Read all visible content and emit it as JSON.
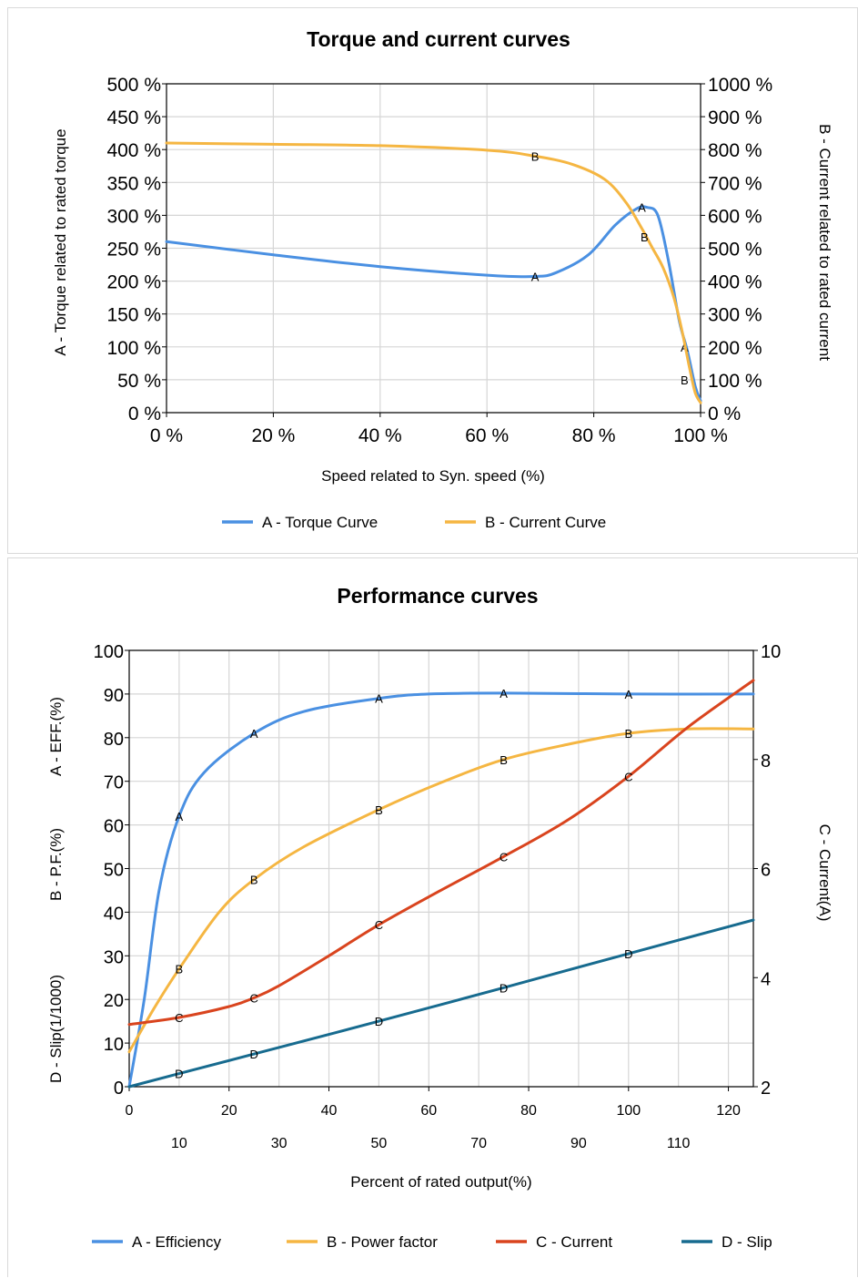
{
  "colors": {
    "torque": "#4a90e2",
    "current_orange": "#f5b642",
    "current_red": "#d9441e",
    "slip": "#176b8f",
    "grid": "#d6d6d6"
  },
  "chart_data": [
    {
      "type": "line",
      "title": "Torque and current curves",
      "xlabel": "Speed related to Syn. speed (%)",
      "ylabel_left": "A - Torque related to rated torque",
      "ylabel_right": "B - Current related to rated current",
      "xlim": [
        0,
        100
      ],
      "ylim_left": [
        0,
        500
      ],
      "ylim_right": [
        0,
        1000
      ],
      "x_ticks": [
        "0 %",
        "20 %",
        "40 %",
        "60 %",
        "80 %",
        "100 %"
      ],
      "y_left_ticks": [
        "0 %",
        "50 %",
        "100 %",
        "150 %",
        "200 %",
        "250 %",
        "300 %",
        "350 %",
        "400 %",
        "450 %",
        "500 %"
      ],
      "y_right_ticks": [
        "0 %",
        "100 %",
        "200 %",
        "300 %",
        "400 %",
        "500 %",
        "600 %",
        "700 %",
        "800 %",
        "900 %",
        "1000 %"
      ],
      "grid": true,
      "legend_position": "bottom",
      "series": [
        {
          "name": "A - Torque Curve",
          "marker": "A",
          "axis": "left",
          "color": "#4a90e2",
          "x": [
            0,
            20,
            40,
            60,
            69,
            73,
            79,
            84,
            88,
            90,
            92,
            94,
            96,
            97.5,
            99,
            100
          ],
          "y": [
            260,
            240,
            222,
            209,
            207,
            213,
            240,
            285,
            310,
            312,
            300,
            230,
            140,
            95,
            40,
            18
          ],
          "marker_x": [
            69,
            89,
            97
          ],
          "marker_y": [
            207,
            312,
            100
          ]
        },
        {
          "name": "B - Current Curve",
          "marker": "B",
          "axis": "right",
          "color": "#f5b642",
          "x": [
            0,
            20,
            40,
            60,
            69,
            76,
            82,
            86,
            89,
            91,
            93,
            95,
            96.5,
            98,
            99,
            100
          ],
          "y": [
            820,
            816,
            812,
            798,
            780,
            755,
            710,
            640,
            560,
            500,
            440,
            350,
            250,
            130,
            60,
            30
          ],
          "marker_x": [
            69,
            89.5,
            97
          ],
          "marker_y": [
            780,
            535,
            100
          ]
        }
      ]
    },
    {
      "type": "line",
      "title": "Performance curves",
      "xlabel": "Percent of rated output(%)",
      "ylabel_left": [
        "D - Slip(1/1000)",
        "B - P.F.(%)",
        "A - EFF.(%)"
      ],
      "ylabel_right": "C - Current(A)",
      "xlim": [
        0,
        125
      ],
      "ylim_left": [
        0,
        100
      ],
      "ylim_right": [
        2,
        10
      ],
      "x_ticks_top": [
        "0",
        "20",
        "40",
        "60",
        "80",
        "100",
        "120"
      ],
      "x_ticks_bottom": [
        "10",
        "30",
        "50",
        "70",
        "90",
        "110"
      ],
      "y_left_ticks": [
        "0",
        "10",
        "20",
        "30",
        "40",
        "50",
        "60",
        "70",
        "80",
        "90",
        "100"
      ],
      "y_right_ticks": [
        "2",
        "4",
        "6",
        "8",
        "10"
      ],
      "grid": true,
      "legend_position": "bottom",
      "series": [
        {
          "name": "A -  Efficiency",
          "marker": "A",
          "axis": "left",
          "color": "#4a90e2",
          "x": [
            0,
            3,
            6,
            10,
            15,
            25,
            35,
            50,
            60,
            75,
            100,
            125
          ],
          "y": [
            0,
            20,
            45,
            62,
            72,
            81,
            86,
            89,
            90,
            90.2,
            90,
            90
          ],
          "marker_x": [
            10,
            25,
            50,
            75,
            100
          ],
          "marker_y": [
            62,
            81,
            89,
            90.2,
            90
          ]
        },
        {
          "name": "B - Power factor",
          "marker": "B",
          "axis": "left",
          "color": "#f5b642",
          "x": [
            0,
            5,
            10,
            18,
            25,
            35,
            50,
            62,
            75,
            88,
            100,
            112,
            125
          ],
          "y": [
            8,
            18,
            27,
            40,
            47.5,
            55,
            63.5,
            69.5,
            75,
            78.5,
            81,
            82,
            82
          ],
          "marker_x": [
            10,
            25,
            50,
            75,
            100
          ],
          "marker_y": [
            27,
            47.5,
            63.5,
            75,
            81
          ]
        },
        {
          "name": "C - Current",
          "marker": "C",
          "axis": "right",
          "color": "#d9441e",
          "x": [
            0,
            10,
            20,
            25,
            30,
            40,
            50,
            62,
            75,
            88,
            100,
            112,
            125
          ],
          "y": [
            3.14,
            3.27,
            3.47,
            3.63,
            3.85,
            4.4,
            4.97,
            5.58,
            6.22,
            6.9,
            7.69,
            8.6,
            9.45
          ],
          "marker_x": [
            10,
            25,
            50,
            75,
            100
          ],
          "marker_y": [
            3.27,
            3.63,
            4.97,
            6.22,
            7.69
          ]
        },
        {
          "name": "D - Slip",
          "marker": "D",
          "axis": "left",
          "color": "#176b8f",
          "x": [
            0,
            10,
            25,
            50,
            75,
            100,
            125
          ],
          "y": [
            0,
            3,
            7.5,
            15,
            22.7,
            30.5,
            38.2
          ],
          "marker_x": [
            10,
            25,
            50,
            75,
            100
          ],
          "marker_y": [
            3,
            7.5,
            15,
            22.7,
            30.5
          ]
        }
      ]
    }
  ]
}
